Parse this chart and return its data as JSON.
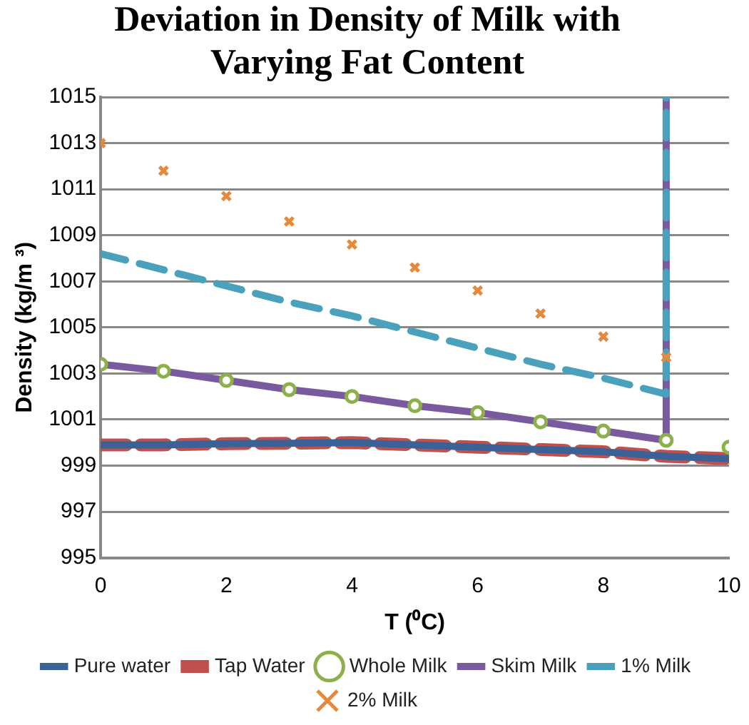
{
  "chart_data": {
    "type": "line",
    "title": "Deviation in Density of Milk with Varying Fat Content",
    "xlabel": "T (⁰C)",
    "ylabel": "Density (kg/m ³)",
    "xlim": [
      0,
      10
    ],
    "xticks": [
      0,
      2,
      4,
      6,
      8,
      10
    ],
    "ylim": [
      995,
      1015
    ],
    "yticks": [
      995,
      997,
      999,
      1001,
      1003,
      1005,
      1007,
      1009,
      1011,
      1013,
      1015
    ],
    "grid": "y",
    "legend": "bottom",
    "series": [
      {
        "name": "Pure water",
        "color": "#3a6296",
        "type": "line",
        "marker": "none",
        "line_style": "solid",
        "x": [
          0,
          1,
          2,
          3,
          4,
          5,
          6,
          7,
          8,
          9,
          10
        ],
        "values": [
          999.9,
          999.9,
          999.95,
          999.97,
          1000.0,
          999.9,
          999.8,
          999.7,
          999.6,
          999.4,
          999.3
        ]
      },
      {
        "name": "Tap Water",
        "color": "#c0504d",
        "type": "line",
        "marker": "none",
        "line_style": "dashed",
        "x": [
          0,
          1,
          2,
          3,
          4,
          5,
          6,
          7,
          8,
          9,
          10
        ],
        "values": [
          999.9,
          999.9,
          999.95,
          999.97,
          1000.0,
          999.9,
          999.8,
          999.7,
          999.6,
          999.4,
          999.3
        ]
      },
      {
        "name": "Whole Milk",
        "color": "#8db04a",
        "type": "scatter",
        "marker": "circle",
        "x": [
          0,
          1,
          2,
          3,
          4,
          5,
          6,
          7,
          8,
          9,
          10
        ],
        "values": [
          1003.4,
          1003.1,
          1002.7,
          1002.3,
          1002.0,
          1001.6,
          1001.3,
          1000.9,
          1000.5,
          1000.1,
          999.8
        ]
      },
      {
        "name": "Skim Milk",
        "color": "#7a5a9e",
        "type": "line",
        "marker": "none",
        "line_style": "solid",
        "x": [
          0,
          1,
          2,
          3,
          4,
          5,
          6,
          7,
          8,
          9,
          9
        ],
        "values": [
          1003.4,
          1003.1,
          1002.7,
          1002.3,
          1002.0,
          1001.6,
          1001.3,
          1000.9,
          1000.5,
          1000.1,
          1015
        ]
      },
      {
        "name": "1% Milk",
        "color": "#4aa1bb",
        "type": "line",
        "marker": "none",
        "line_style": "dashed",
        "x": [
          0,
          1,
          2,
          3,
          4,
          5,
          6,
          7,
          8,
          9,
          9
        ],
        "values": [
          1008.2,
          1007.5,
          1006.8,
          1006.1,
          1005.5,
          1004.8,
          1004.1,
          1003.4,
          1002.8,
          1002.1,
          1015
        ]
      },
      {
        "name": "2% Milk",
        "color": "#e58a3c",
        "type": "scatter",
        "marker": "cross",
        "x": [
          0,
          1,
          2,
          3,
          4,
          5,
          6,
          7,
          8,
          9
        ],
        "values": [
          1013.0,
          1011.8,
          1010.7,
          1009.6,
          1008.6,
          1007.6,
          1006.6,
          1005.6,
          1004.6,
          1003.7
        ]
      }
    ]
  }
}
